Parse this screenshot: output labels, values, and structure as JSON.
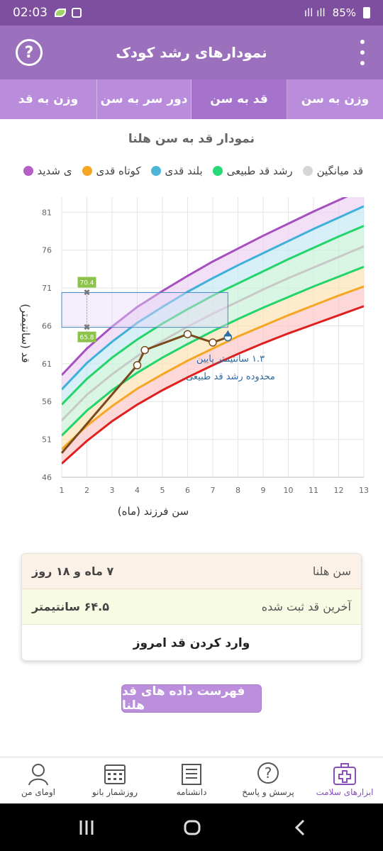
{
  "status_bar": {
    "time": "02:03",
    "battery": "85%"
  },
  "app_bar": {
    "title": "نمودارهای رشد کودک",
    "help_glyph": "?"
  },
  "tabs": [
    {
      "label": "وزن به قد",
      "active": false
    },
    {
      "label": "دور سر به سن",
      "active": false
    },
    {
      "label": "قد به سن",
      "active": true
    },
    {
      "label": "وزن به سن",
      "active": false
    }
  ],
  "chart_title": "نمودار قد به سن هلنا",
  "legend": [
    {
      "label": "قد میانگین",
      "color": "#d6d6d6"
    },
    {
      "label": "رشد قد طبیعی",
      "color": "#27d977"
    },
    {
      "label": "بلند قدی",
      "color": "#4db5d6"
    },
    {
      "label": "کوتاه قدی",
      "color": "#f6a623"
    },
    {
      "label": "ی شدید",
      "color": "#b460c6"
    }
  ],
  "chart_data": {
    "type": "line",
    "xlabel": "سن فرزند (ماه)",
    "ylabel": "قد (سانتیمتر)",
    "xlim": [
      1,
      13
    ],
    "ylim": [
      46,
      83
    ],
    "x_ticks": [
      1,
      2,
      3,
      4,
      5,
      6,
      7,
      8,
      9,
      10,
      11,
      12,
      13
    ],
    "y_ticks": [
      46,
      51,
      56,
      61,
      66,
      71,
      76,
      81
    ],
    "percentile_curves": [
      {
        "color": "#e02020",
        "x": [
          1,
          2,
          3,
          4,
          5,
          6,
          7,
          8,
          9,
          10,
          11,
          12,
          13
        ],
        "y": [
          47.8,
          50.8,
          53.4,
          55.6,
          57.5,
          59.2,
          60.8,
          62.3,
          63.7,
          65.0,
          66.2,
          67.4,
          68.6
        ]
      },
      {
        "color": "#f5a623",
        "x": [
          1,
          2,
          3,
          4,
          5,
          6,
          7,
          8,
          9,
          10,
          11,
          12,
          13
        ],
        "y": [
          49.7,
          52.8,
          55.4,
          57.7,
          59.6,
          61.4,
          63.0,
          64.6,
          66.0,
          67.4,
          68.7,
          70.0,
          71.2
        ]
      },
      {
        "color": "#22d46a",
        "x": [
          1,
          2,
          3,
          4,
          5,
          6,
          7,
          8,
          9,
          10,
          11,
          12,
          13
        ],
        "y": [
          51.5,
          54.8,
          57.5,
          59.8,
          61.8,
          63.6,
          65.3,
          66.9,
          68.4,
          69.8,
          71.2,
          72.5,
          73.8
        ]
      },
      {
        "color": "#c8c8c8",
        "x": [
          1,
          2,
          3,
          4,
          5,
          6,
          7,
          8,
          9,
          10,
          11,
          12,
          13
        ],
        "y": [
          53.5,
          56.9,
          59.6,
          62.0,
          64.0,
          65.9,
          67.6,
          69.2,
          70.8,
          72.3,
          73.7,
          75.1,
          76.5
        ]
      },
      {
        "color": "#22d46a",
        "x": [
          1,
          2,
          3,
          4,
          5,
          6,
          7,
          8,
          9,
          10,
          11,
          12,
          13
        ],
        "y": [
          55.6,
          59.0,
          61.8,
          64.2,
          66.3,
          68.2,
          70.0,
          71.6,
          73.2,
          74.8,
          76.3,
          77.8,
          79.2
        ]
      },
      {
        "color": "#3fb0d8",
        "x": [
          1,
          2,
          3,
          4,
          5,
          6,
          7,
          8,
          9,
          10,
          11,
          12,
          13
        ],
        "y": [
          57.6,
          61.1,
          63.9,
          66.4,
          68.5,
          70.5,
          72.3,
          74.0,
          75.6,
          77.2,
          78.8,
          80.3,
          81.8
        ]
      },
      {
        "color": "#a64fc0",
        "x": [
          1,
          2,
          3,
          4,
          5,
          6,
          7,
          8,
          9,
          10,
          11,
          12,
          13
        ],
        "y": [
          59.5,
          63.0,
          65.9,
          68.5,
          70.6,
          72.6,
          74.5,
          76.2,
          77.9,
          79.5,
          81.1,
          82.6,
          84.1
        ]
      }
    ],
    "child_series": {
      "name": "هلنا",
      "color": "#7a4a1e",
      "x": [
        1,
        4.0,
        4.3,
        6.0,
        7.0,
        7.6
      ],
      "y": [
        49.2,
        60.8,
        62.8,
        64.9,
        63.8,
        64.5
      ]
    },
    "highlight_range": {
      "x": [
        1,
        7.6
      ],
      "y": [
        65.8,
        70.4
      ],
      "labels": [
        "70.4",
        "65.8"
      ],
      "marker_x": 2
    },
    "annotation": [
      "۱.۳ سانتیمتر پایین",
      "محدوده رشد قد طبیعی"
    ]
  },
  "info": {
    "age_label": "سن هلنا",
    "age_value": "۷ ماه و ۱۸ روز",
    "last_height_label": "آخرین قد ثبت شده",
    "last_height_value": "۶۴.۵ سانتیمتر",
    "enter_button": "وارد کردن قد امروز"
  },
  "list_button": "فهرست داده های قد هلنا",
  "bottom_nav": [
    {
      "label": "اومای من",
      "icon": "person-icon"
    },
    {
      "label": "روزشمار بانو",
      "icon": "calendar-icon"
    },
    {
      "label": "دانشنامه",
      "icon": "encyclopedia-icon"
    },
    {
      "label": "پرسش و پاسخ",
      "icon": "question-icon"
    },
    {
      "label": "ابزارهای سلامت",
      "icon": "medical-kit-icon",
      "active": true
    }
  ]
}
